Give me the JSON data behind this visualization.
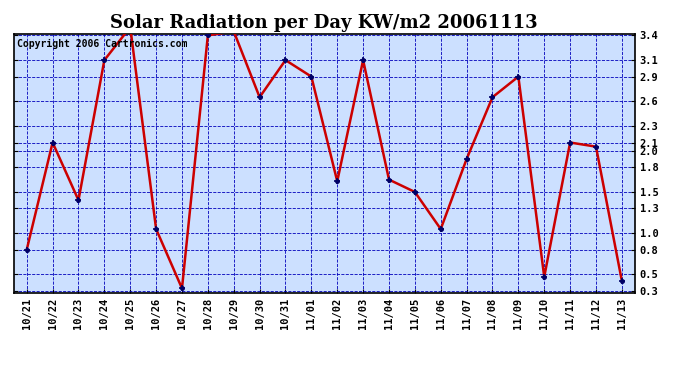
{
  "title": "Solar Radiation per Day KW/m2 20061113",
  "copyright_text": "Copyright 2006 Cartronics.com",
  "x_labels": [
    "10/21",
    "10/22",
    "10/23",
    "10/24",
    "10/25",
    "10/26",
    "10/27",
    "10/28",
    "10/29",
    "10/30",
    "10/31",
    "11/01",
    "11/02",
    "11/03",
    "11/04",
    "11/05",
    "11/06",
    "11/07",
    "11/08",
    "11/09",
    "11/10",
    "11/11",
    "11/12",
    "11/13"
  ],
  "y_values": [
    0.8,
    2.1,
    1.4,
    3.1,
    3.5,
    1.05,
    0.33,
    3.4,
    3.45,
    2.65,
    3.1,
    2.9,
    1.63,
    3.1,
    1.65,
    1.5,
    1.05,
    1.9,
    2.65,
    2.9,
    0.47,
    2.1,
    2.05,
    0.42
  ],
  "ylim_min": 0.3,
  "ylim_max": 3.4,
  "yticks": [
    0.3,
    0.5,
    0.8,
    1.0,
    1.3,
    1.5,
    1.8,
    2.0,
    2.1,
    2.3,
    2.6,
    2.9,
    3.1,
    3.4
  ],
  "line_color": "#cc0000",
  "marker_color": "#000066",
  "bg_color": "#ffffff",
  "plot_bg_color": "#cce0ff",
  "grid_color": "#0000bb",
  "title_fontsize": 13,
  "copyright_fontsize": 7,
  "tick_fontsize": 7.5,
  "fig_width": 6.9,
  "fig_height": 3.75,
  "fig_dpi": 100
}
